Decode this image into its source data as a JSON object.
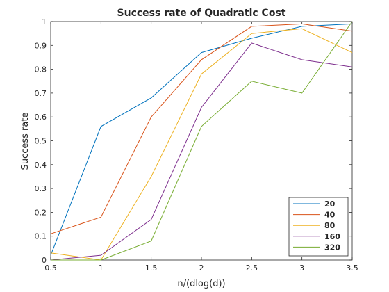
{
  "chart_data": {
    "type": "line",
    "title": "Success rate of Quadratic Cost",
    "xlabel": "n/(dlog(d))",
    "ylabel": "Success rate",
    "xlim": [
      0.5,
      3.5
    ],
    "ylim": [
      0,
      1
    ],
    "xticks": [
      "0.5",
      "1",
      "1.5",
      "2",
      "2.5",
      "3",
      "3.5"
    ],
    "yticks": [
      "0",
      "0.1",
      "0.2",
      "0.3",
      "0.4",
      "0.5",
      "0.6",
      "0.7",
      "0.8",
      "0.9",
      "1"
    ],
    "grid": false,
    "legend_position": "bottom-right",
    "x": [
      0.5,
      1,
      1.5,
      2,
      2.5,
      3,
      3.5
    ],
    "series": [
      {
        "name": "20",
        "color": "#0072BD",
        "values": [
          0.02,
          0.56,
          0.68,
          0.87,
          0.93,
          0.98,
          0.99
        ]
      },
      {
        "name": "40",
        "color": "#D95319",
        "values": [
          0.11,
          0.18,
          0.6,
          0.84,
          0.98,
          0.99,
          0.96
        ]
      },
      {
        "name": "80",
        "color": "#EDB120",
        "values": [
          0.03,
          0.0,
          0.35,
          0.78,
          0.95,
          0.97,
          0.87
        ]
      },
      {
        "name": "160",
        "color": "#7E2F8E",
        "values": [
          0.0,
          0.02,
          0.17,
          0.64,
          0.91,
          0.84,
          0.81
        ]
      },
      {
        "name": "320",
        "color": "#77AC30",
        "values": [
          0.0,
          0.0,
          0.08,
          0.56,
          0.75,
          0.7,
          1.0
        ]
      }
    ]
  }
}
